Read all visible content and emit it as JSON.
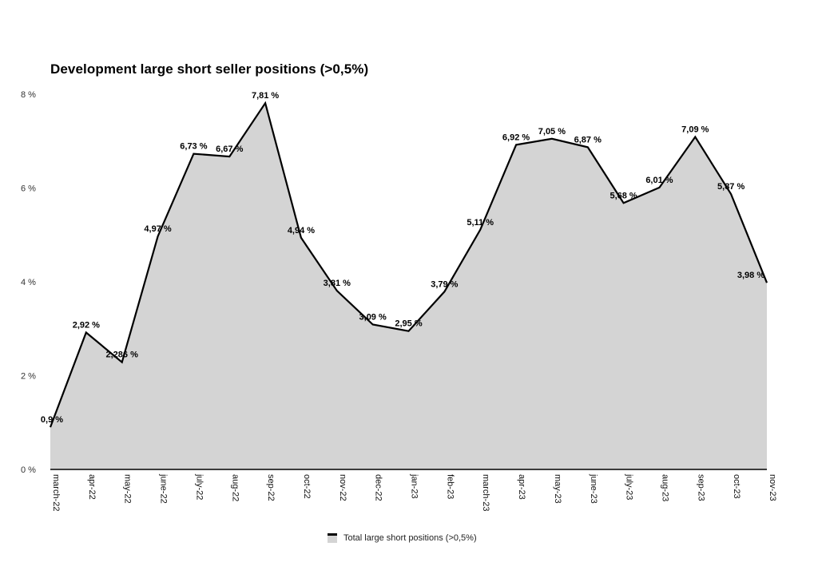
{
  "chart_data": {
    "type": "area",
    "title": "Development large short seller positions (>0,5%)",
    "xlabel": "",
    "ylabel": "",
    "categories": [
      "march-22",
      "apr-22",
      "may-22",
      "june-22",
      "july-22",
      "aug-22",
      "sep-22",
      "oct-22",
      "nov-22",
      "dec-22",
      "jan-23",
      "feb-23",
      "march-23",
      "apr-23",
      "may-23",
      "june-23",
      "july-23",
      "aug-23",
      "sep-23",
      "oct-23",
      "nov-23"
    ],
    "series": [
      {
        "name": "Total large short positions (>0,5%)",
        "values": [
          0.9,
          2.92,
          2.286,
          4.97,
          6.73,
          6.67,
          7.81,
          4.94,
          3.81,
          3.09,
          2.95,
          3.79,
          5.11,
          6.92,
          7.05,
          6.87,
          5.68,
          6.01,
          7.09,
          5.87,
          3.98
        ],
        "labels": [
          "0,9 %",
          "2,92 %",
          "2,286 %",
          "4,97 %",
          "6,73 %",
          "6,67 %",
          "7,81 %",
          "4,94 %",
          "3,81 %",
          "3,09 %",
          "2,95 %",
          "3,79 %",
          "5,11 %",
          "6,92 %",
          "7,05 %",
          "6,87 %",
          "5,68 %",
          "6,01 %",
          "7,09 %",
          "5,87 %",
          "3,98 %"
        ]
      }
    ],
    "ylim": [
      0,
      8
    ],
    "yticks": [
      0,
      2,
      4,
      6,
      8
    ],
    "ytick_labels": [
      "0 %",
      "2 %",
      "4 %",
      "6 %",
      "8 %"
    ],
    "grid": false,
    "legend_position": "bottom-center",
    "colors": {
      "fill": "#d4d4d4",
      "line": "#000000"
    }
  }
}
